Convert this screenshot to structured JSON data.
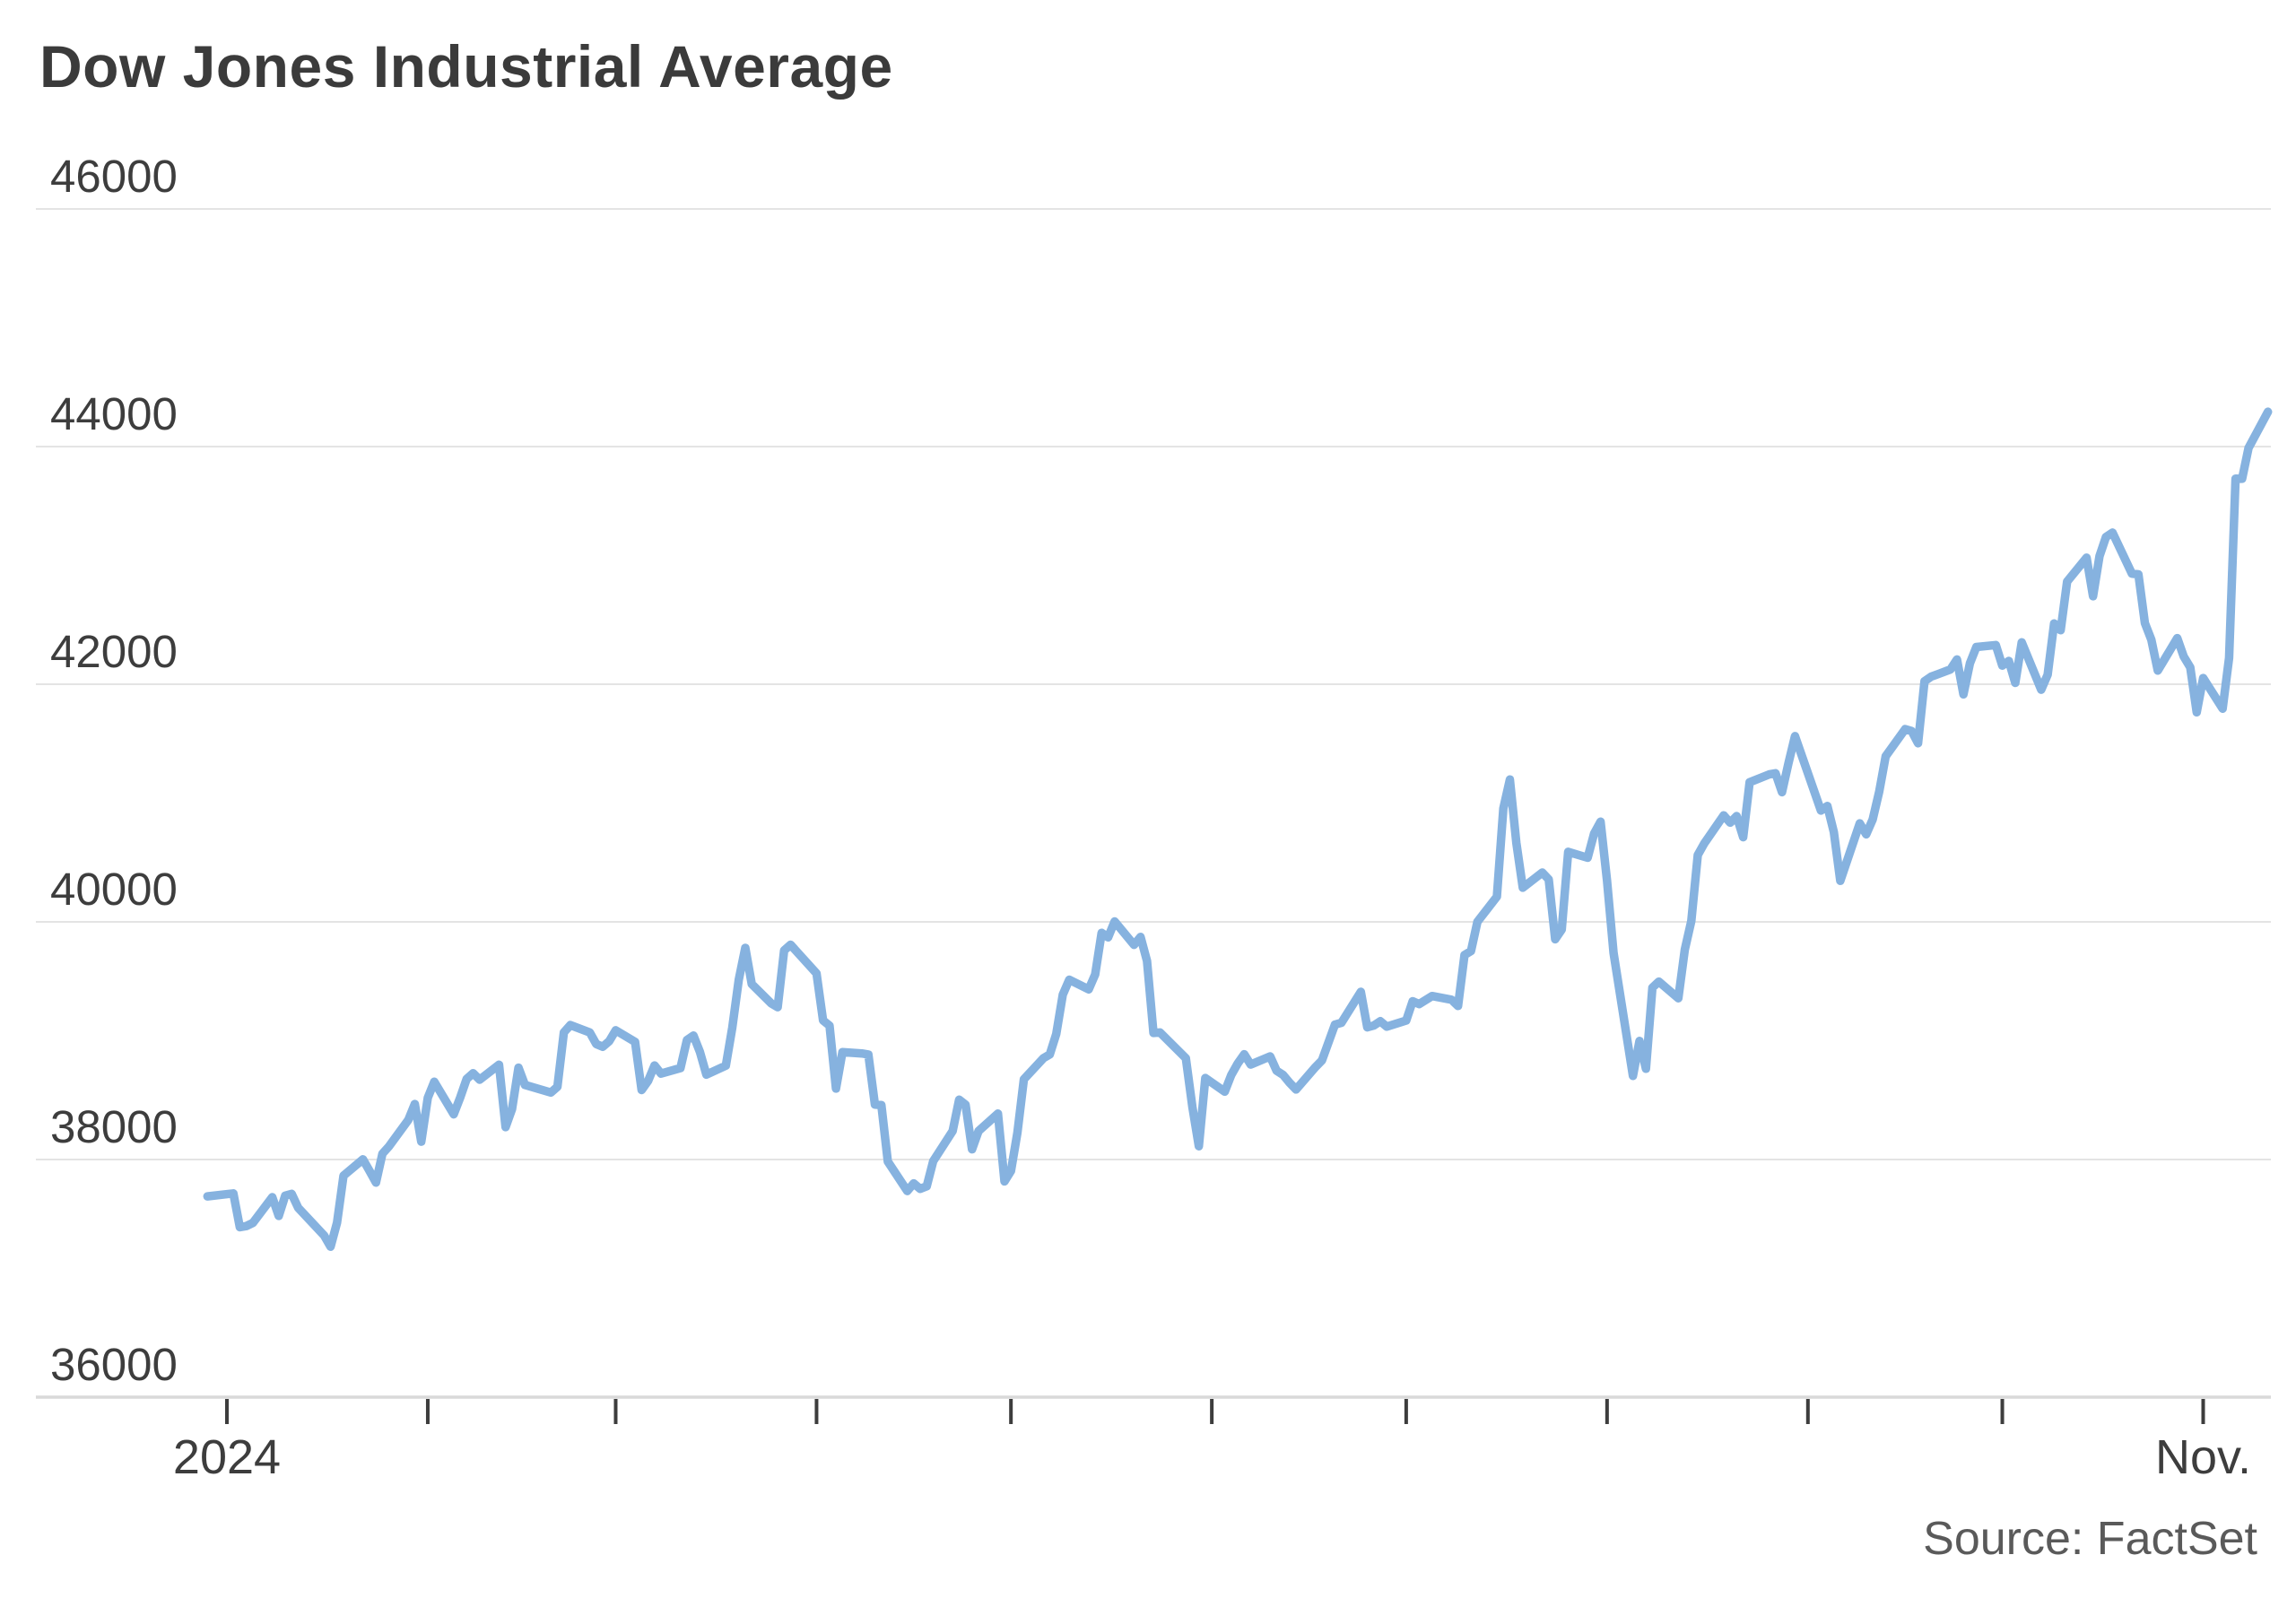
{
  "header": {
    "title": "Dow Jones Industrial Average"
  },
  "footer": {
    "source": "Source: FactSet"
  },
  "colors": {
    "background": "#ffffff",
    "line": "#86b2df",
    "title_text": "#3b3b3b",
    "axis_text": "#3d3d3d",
    "source_text": "#5a5a5a",
    "gridline": "#e4e4e4",
    "baseline": "#d9d9d9",
    "tick": "#3d3d3d"
  },
  "chart_data": {
    "type": "line",
    "title": "Dow Jones Industrial Average",
    "xlabel": "",
    "ylabel": "",
    "ylim": [
      36000,
      46000
    ],
    "grid": true,
    "legend_position": "none",
    "yaxis": {
      "ticks": [
        46000,
        44000,
        42000,
        40000,
        38000,
        36000
      ],
      "tick_labels": [
        "46000",
        "44000",
        "42000",
        "40000",
        "38000",
        "36000"
      ]
    },
    "xaxis": {
      "tick_dates": [
        "2024-01-01",
        "2024-02-01",
        "2024-03-01",
        "2024-04-01",
        "2024-05-01",
        "2024-06-01",
        "2024-07-01",
        "2024-08-01",
        "2024-09-01",
        "2024-10-01",
        "2024-11-01"
      ],
      "labeled_ticks": [
        {
          "date": "2024-01-01",
          "text": "2024"
        },
        {
          "date": "2024-11-01",
          "text": "Nov."
        }
      ],
      "range": [
        "2023-12-29",
        "2024-11-11"
      ]
    },
    "series": [
      {
        "name": "Dow Jones Industrial Average",
        "color": "#86b2df",
        "points": [
          [
            "2023-12-29",
            37689.54
          ],
          [
            "2024-01-02",
            37715.04
          ],
          [
            "2024-01-03",
            37430.19
          ],
          [
            "2024-01-04",
            37440.34
          ],
          [
            "2024-01-05",
            37466.11
          ],
          [
            "2024-01-08",
            37683.01
          ],
          [
            "2024-01-09",
            37525.16
          ],
          [
            "2024-01-10",
            37695.73
          ],
          [
            "2024-01-11",
            37711.02
          ],
          [
            "2024-01-12",
            37592.98
          ],
          [
            "2024-01-16",
            37361.12
          ],
          [
            "2024-01-17",
            37266.67
          ],
          [
            "2024-01-18",
            37468.61
          ],
          [
            "2024-01-19",
            37863.8
          ],
          [
            "2024-01-22",
            38001.81
          ],
          [
            "2024-01-23",
            37905.45
          ],
          [
            "2024-01-24",
            37806.39
          ],
          [
            "2024-01-25",
            38049.13
          ],
          [
            "2024-01-26",
            38109.43
          ],
          [
            "2024-01-29",
            38333.45
          ],
          [
            "2024-01-30",
            38467.31
          ],
          [
            "2024-01-31",
            38150.3
          ],
          [
            "2024-02-01",
            38519.84
          ],
          [
            "2024-02-02",
            38654.42
          ],
          [
            "2024-02-05",
            38380.12
          ],
          [
            "2024-02-06",
            38521.36
          ],
          [
            "2024-02-07",
            38677.36
          ],
          [
            "2024-02-08",
            38726.33
          ],
          [
            "2024-02-09",
            38671.69
          ],
          [
            "2024-02-12",
            38797.38
          ],
          [
            "2024-02-13",
            38272.75
          ],
          [
            "2024-02-14",
            38424.27
          ],
          [
            "2024-02-15",
            38773.12
          ],
          [
            "2024-02-16",
            38627.99
          ],
          [
            "2024-02-20",
            38563.8
          ],
          [
            "2024-02-21",
            38612.24
          ],
          [
            "2024-02-22",
            39069.11
          ],
          [
            "2024-02-23",
            39131.53
          ],
          [
            "2024-02-26",
            39069.23
          ],
          [
            "2024-02-27",
            38972.41
          ],
          [
            "2024-02-28",
            38949.02
          ],
          [
            "2024-02-29",
            38996.39
          ],
          [
            "2024-03-01",
            39087.38
          ],
          [
            "2024-03-04",
            38989.83
          ],
          [
            "2024-03-05",
            38585.19
          ],
          [
            "2024-03-06",
            38661.05
          ],
          [
            "2024-03-07",
            38791.35
          ],
          [
            "2024-03-08",
            38722.69
          ],
          [
            "2024-03-11",
            38769.66
          ],
          [
            "2024-03-12",
            39005.49
          ],
          [
            "2024-03-13",
            39043.32
          ],
          [
            "2024-03-14",
            38905.66
          ],
          [
            "2024-03-15",
            38714.77
          ],
          [
            "2024-03-18",
            38790.43
          ],
          [
            "2024-03-19",
            39110.76
          ],
          [
            "2024-03-20",
            39512.13
          ],
          [
            "2024-03-21",
            39781.37
          ],
          [
            "2024-03-22",
            39475.9
          ],
          [
            "2024-03-25",
            39313.64
          ],
          [
            "2024-03-26",
            39282.33
          ],
          [
            "2024-03-27",
            39760.08
          ],
          [
            "2024-03-28",
            39807.37
          ],
          [
            "2024-04-01",
            39566.85
          ],
          [
            "2024-04-02",
            39170.24
          ],
          [
            "2024-04-03",
            39127.14
          ],
          [
            "2024-04-04",
            38596.98
          ],
          [
            "2024-04-05",
            38904.04
          ],
          [
            "2024-04-08",
            38892.8
          ],
          [
            "2024-04-09",
            38883.67
          ],
          [
            "2024-04-10",
            38461.51
          ],
          [
            "2024-04-11",
            38459.08
          ],
          [
            "2024-04-12",
            37983.24
          ],
          [
            "2024-04-15",
            37735.11
          ],
          [
            "2024-04-16",
            37798.97
          ],
          [
            "2024-04-17",
            37753.31
          ],
          [
            "2024-04-18",
            37775.38
          ],
          [
            "2024-04-19",
            37986.4
          ],
          [
            "2024-04-22",
            38239.98
          ],
          [
            "2024-04-23",
            38503.69
          ],
          [
            "2024-04-24",
            38460.92
          ],
          [
            "2024-04-25",
            38085.8
          ],
          [
            "2024-04-26",
            38239.66
          ],
          [
            "2024-04-29",
            38386.09
          ],
          [
            "2024-04-30",
            37815.92
          ],
          [
            "2024-05-01",
            37903.29
          ],
          [
            "2024-05-02",
            38225.66
          ],
          [
            "2024-05-03",
            38675.68
          ],
          [
            "2024-05-06",
            38852.27
          ],
          [
            "2024-05-07",
            38884.26
          ],
          [
            "2024-05-08",
            39056.39
          ],
          [
            "2024-05-09",
            39387.76
          ],
          [
            "2024-05-10",
            39512.84
          ],
          [
            "2024-05-13",
            39431.51
          ],
          [
            "2024-05-14",
            39558.11
          ],
          [
            "2024-05-15",
            39908.0
          ],
          [
            "2024-05-16",
            39869.38
          ],
          [
            "2024-05-17",
            40003.59
          ],
          [
            "2024-05-20",
            39806.77
          ],
          [
            "2024-05-21",
            39872.99
          ],
          [
            "2024-05-22",
            39671.04
          ],
          [
            "2024-05-23",
            39065.26
          ],
          [
            "2024-05-24",
            39069.59
          ],
          [
            "2024-05-28",
            38852.86
          ],
          [
            "2024-05-29",
            38441.54
          ],
          [
            "2024-05-30",
            38111.48
          ],
          [
            "2024-05-31",
            38686.32
          ],
          [
            "2024-06-03",
            38571.03
          ],
          [
            "2024-06-04",
            38711.29
          ],
          [
            "2024-06-05",
            38807.33
          ],
          [
            "2024-06-06",
            38886.17
          ],
          [
            "2024-06-07",
            38798.99
          ],
          [
            "2024-06-10",
            38868.04
          ],
          [
            "2024-06-11",
            38747.42
          ],
          [
            "2024-06-12",
            38712.21
          ],
          [
            "2024-06-13",
            38647.1
          ],
          [
            "2024-06-14",
            38589.16
          ],
          [
            "2024-06-17",
            38778.1
          ],
          [
            "2024-06-18",
            38834.86
          ],
          [
            "2024-06-20",
            39134.76
          ],
          [
            "2024-06-21",
            39150.33
          ],
          [
            "2024-06-24",
            39411.21
          ],
          [
            "2024-06-25",
            39112.16
          ],
          [
            "2024-06-26",
            39127.8
          ],
          [
            "2024-06-27",
            39164.06
          ],
          [
            "2024-06-28",
            39118.86
          ],
          [
            "2024-07-01",
            39169.52
          ],
          [
            "2024-07-02",
            39331.85
          ],
          [
            "2024-07-03",
            39308.0
          ],
          [
            "2024-07-05",
            39375.87
          ],
          [
            "2024-07-08",
            39344.79
          ],
          [
            "2024-07-09",
            39291.97
          ],
          [
            "2024-07-10",
            39721.36
          ],
          [
            "2024-07-11",
            39753.75
          ],
          [
            "2024-07-12",
            40000.9
          ],
          [
            "2024-07-15",
            40211.72
          ],
          [
            "2024-07-16",
            40954.48
          ],
          [
            "2024-07-17",
            41198.08
          ],
          [
            "2024-07-18",
            40665.02
          ],
          [
            "2024-07-19",
            40287.53
          ],
          [
            "2024-07-22",
            40415.44
          ],
          [
            "2024-07-23",
            40358.09
          ],
          [
            "2024-07-24",
            39853.87
          ],
          [
            "2024-07-25",
            39935.07
          ],
          [
            "2024-07-26",
            40589.34
          ],
          [
            "2024-07-29",
            40539.93
          ],
          [
            "2024-07-30",
            40743.33
          ],
          [
            "2024-07-31",
            40842.79
          ],
          [
            "2024-08-01",
            40347.97
          ],
          [
            "2024-08-02",
            39737.26
          ],
          [
            "2024-08-05",
            38703.27
          ],
          [
            "2024-08-06",
            38997.66
          ],
          [
            "2024-08-07",
            38763.45
          ],
          [
            "2024-08-08",
            39446.49
          ],
          [
            "2024-08-09",
            39497.54
          ],
          [
            "2024-08-12",
            39357.01
          ],
          [
            "2024-08-13",
            39765.64
          ],
          [
            "2024-08-14",
            40008.39
          ],
          [
            "2024-08-15",
            40563.06
          ],
          [
            "2024-08-16",
            40659.76
          ],
          [
            "2024-08-19",
            40896.53
          ],
          [
            "2024-08-20",
            40834.97
          ],
          [
            "2024-08-21",
            40890.49
          ],
          [
            "2024-08-22",
            40712.78
          ],
          [
            "2024-08-23",
            41175.08
          ],
          [
            "2024-08-26",
            41240.52
          ],
          [
            "2024-08-27",
            41250.5
          ],
          [
            "2024-08-28",
            41091.42
          ],
          [
            "2024-08-29",
            41335.05
          ],
          [
            "2024-08-30",
            41563.08
          ],
          [
            "2024-09-03",
            40936.93
          ],
          [
            "2024-09-04",
            40974.97
          ],
          [
            "2024-09-05",
            40755.75
          ],
          [
            "2024-09-06",
            40345.41
          ],
          [
            "2024-09-09",
            40829.59
          ],
          [
            "2024-09-10",
            40736.96
          ],
          [
            "2024-09-11",
            40861.71
          ],
          [
            "2024-09-12",
            41096.77
          ],
          [
            "2024-09-13",
            41393.78
          ],
          [
            "2024-09-16",
            41622.08
          ],
          [
            "2024-09-17",
            41606.18
          ],
          [
            "2024-09-18",
            41503.1
          ],
          [
            "2024-09-19",
            42025.19
          ],
          [
            "2024-09-20",
            42063.36
          ],
          [
            "2024-09-23",
            42124.65
          ],
          [
            "2024-09-24",
            42208.22
          ],
          [
            "2024-09-25",
            41914.75
          ],
          [
            "2024-09-26",
            42175.11
          ],
          [
            "2024-09-27",
            42313.0
          ],
          [
            "2024-09-30",
            42330.15
          ],
          [
            "2024-10-01",
            42156.97
          ],
          [
            "2024-10-02",
            42196.52
          ],
          [
            "2024-10-03",
            42011.59
          ],
          [
            "2024-10-04",
            42352.75
          ],
          [
            "2024-10-07",
            41954.24
          ],
          [
            "2024-10-08",
            42080.37
          ],
          [
            "2024-10-09",
            42512.0
          ],
          [
            "2024-10-10",
            42454.12
          ],
          [
            "2024-10-11",
            42863.86
          ],
          [
            "2024-10-14",
            43065.22
          ],
          [
            "2024-10-15",
            42740.42
          ],
          [
            "2024-10-16",
            43077.7
          ],
          [
            "2024-10-17",
            43239.05
          ],
          [
            "2024-10-18",
            43275.91
          ],
          [
            "2024-10-21",
            42931.6
          ],
          [
            "2024-10-22",
            42924.89
          ],
          [
            "2024-10-23",
            42514.95
          ],
          [
            "2024-10-24",
            42374.36
          ],
          [
            "2024-10-25",
            42114.4
          ],
          [
            "2024-10-28",
            42387.57
          ],
          [
            "2024-10-29",
            42233.05
          ],
          [
            "2024-10-30",
            42141.54
          ],
          [
            "2024-10-31",
            41763.46
          ],
          [
            "2024-11-01",
            42052.19
          ],
          [
            "2024-11-04",
            41794.6
          ],
          [
            "2024-11-05",
            42221.88
          ],
          [
            "2024-11-06",
            43729.93
          ],
          [
            "2024-11-07",
            43729.34
          ],
          [
            "2024-11-08",
            43988.99
          ],
          [
            "2024-11-11",
            44293.13
          ]
        ]
      }
    ]
  }
}
